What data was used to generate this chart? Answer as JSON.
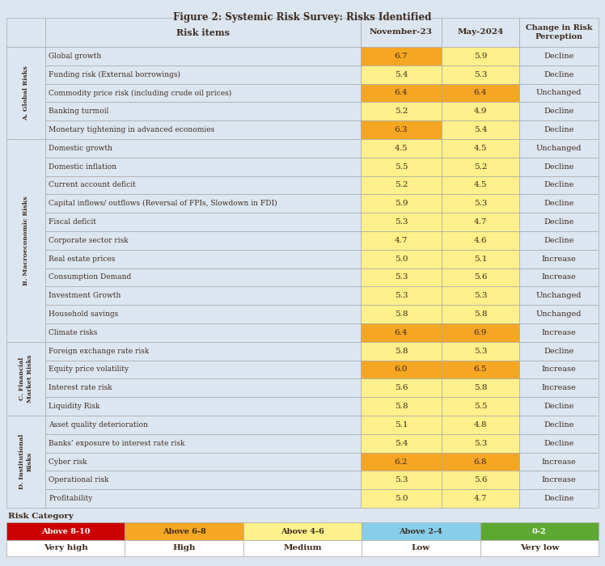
{
  "title": "Figure 2: Systemic Risk Survey: Risks Identified",
  "sections": [
    {
      "label": "A. Global Risks",
      "rows": [
        [
          "Global growth",
          6.7,
          5.9,
          "Decline"
        ],
        [
          "Funding risk (External borrowings)",
          5.4,
          5.3,
          "Decline"
        ],
        [
          "Commodity price risk (including crude oil prices)",
          6.4,
          6.4,
          "Unchanged"
        ],
        [
          "Banking turmoil",
          5.2,
          4.9,
          "Decline"
        ],
        [
          "Monetary tightening in advanced economies",
          6.3,
          5.4,
          "Decline"
        ]
      ]
    },
    {
      "label": "B. Macroeconomic Risks",
      "rows": [
        [
          "Domestic growth",
          4.5,
          4.5,
          "Unchanged"
        ],
        [
          "Domestic inflation",
          5.5,
          5.2,
          "Decline"
        ],
        [
          "Current account deficit",
          5.2,
          4.5,
          "Decline"
        ],
        [
          "Capital inflows/ outflows (Reversal of FPIs, Slowdown in FDI)",
          5.9,
          5.3,
          "Decline"
        ],
        [
          "Fiscal deficit",
          5.3,
          4.7,
          "Decline"
        ],
        [
          "Corporate sector risk",
          4.7,
          4.6,
          "Decline"
        ],
        [
          "Real estate prices",
          5.0,
          5.1,
          "Increase"
        ],
        [
          "Consumption Demand",
          5.3,
          5.6,
          "Increase"
        ],
        [
          "Investment Growth",
          5.3,
          5.3,
          "Unchanged"
        ],
        [
          "Household savings",
          5.8,
          5.8,
          "Unchanged"
        ],
        [
          "Climate risks",
          6.4,
          6.9,
          "Increase"
        ]
      ]
    },
    {
      "label": "C. Financial\nMarket Risks",
      "rows": [
        [
          "Foreign exchange rate risk",
          5.8,
          5.3,
          "Decline"
        ],
        [
          "Equity price volatility",
          6.0,
          6.5,
          "Increase"
        ],
        [
          "Interest rate risk",
          5.6,
          5.8,
          "Increase"
        ],
        [
          "Liquidity Risk",
          5.8,
          5.5,
          "Decline"
        ]
      ]
    },
    {
      "label": "D. Institutional\nRisks",
      "rows": [
        [
          "Asset quality deterioration",
          5.1,
          4.8,
          "Decline"
        ],
        [
          "Banks’ exposure to interest rate risk",
          5.4,
          5.3,
          "Decline"
        ],
        [
          "Cyber risk",
          6.2,
          6.8,
          "Increase"
        ],
        [
          "Operational risk",
          5.3,
          5.6,
          "Increase"
        ],
        [
          "Profitability",
          5.0,
          4.7,
          "Decline"
        ]
      ]
    }
  ],
  "legend_items": [
    {
      "range": "Above 8-10",
      "label": "Very high",
      "color": "#cc0000"
    },
    {
      "range": "Above 6-8",
      "label": "High",
      "color": "#f5a623"
    },
    {
      "range": "Above 4-6",
      "label": "Medium",
      "color": "#fef08a"
    },
    {
      "range": "Above 2-4",
      "label": "Low",
      "color": "#87ceeb"
    },
    {
      "range": "0-2",
      "label": "Very low",
      "color": "#5da832"
    }
  ],
  "bg_color": "#dce6f1",
  "text_color": "#3d2b1f"
}
